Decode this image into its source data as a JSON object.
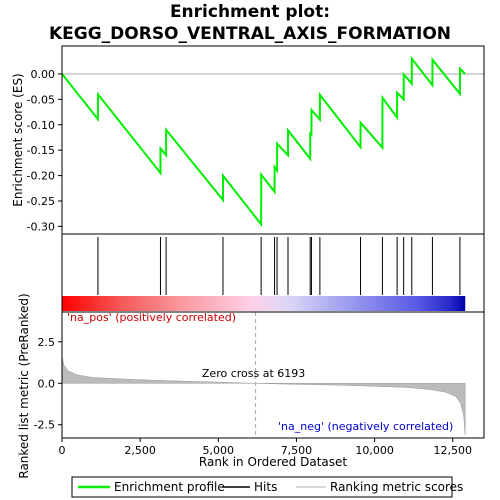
{
  "title_line1": "Enrichment plot:",
  "title_line2": "KEGG_DORSO_VENTRAL_AXIS_FORMATION",
  "chart_data": {
    "type": "line",
    "es_panel": {
      "ylabel": "Enrichment score (ES)",
      "ylim": [
        -0.315,
        0.055
      ],
      "yticks": [
        0.0,
        -0.05,
        -0.1,
        -0.15,
        -0.2,
        -0.25,
        -0.3
      ],
      "ytick_labels": [
        "0.00",
        "-0.05",
        "-0.10",
        "-0.15",
        "-0.20",
        "-0.25",
        "-0.30"
      ],
      "series_name": "Enrichment profile",
      "color": "#00ee00",
      "points": [
        [
          0,
          0.0
        ],
        [
          1150,
          -0.089
        ],
        [
          1151,
          -0.04
        ],
        [
          3150,
          -0.195
        ],
        [
          3151,
          -0.147
        ],
        [
          3330,
          -0.16
        ],
        [
          3331,
          -0.11
        ],
        [
          5150,
          -0.248
        ],
        [
          5151,
          -0.2
        ],
        [
          6370,
          -0.296
        ],
        [
          6371,
          -0.248
        ],
        [
          6372,
          -0.198
        ],
        [
          6800,
          -0.232
        ],
        [
          6801,
          -0.183
        ],
        [
          6880,
          -0.19
        ],
        [
          6881,
          -0.137
        ],
        [
          7230,
          -0.16
        ],
        [
          7231,
          -0.111
        ],
        [
          7940,
          -0.167
        ],
        [
          7941,
          -0.118
        ],
        [
          7980,
          -0.12
        ],
        [
          7981,
          -0.071
        ],
        [
          8250,
          -0.09
        ],
        [
          8251,
          -0.041
        ],
        [
          9550,
          -0.144
        ],
        [
          9551,
          -0.096
        ],
        [
          10250,
          -0.145
        ],
        [
          10251,
          -0.096
        ],
        [
          10252,
          -0.047
        ],
        [
          10720,
          -0.086
        ],
        [
          10721,
          -0.037
        ],
        [
          10930,
          -0.05
        ],
        [
          10931,
          -0.001
        ],
        [
          11190,
          -0.019
        ],
        [
          11191,
          0.03
        ],
        [
          11850,
          -0.022
        ],
        [
          11851,
          0.028
        ],
        [
          12730,
          -0.039
        ],
        [
          12731,
          0.01
        ],
        [
          12900,
          0.0
        ]
      ]
    },
    "hits_panel": {
      "series_name": "Hits",
      "hit_ranks": [
        1150,
        3150,
        3330,
        5150,
        6370,
        6800,
        6880,
        7230,
        7940,
        7980,
        8250,
        9550,
        10250,
        10720,
        10930,
        11190,
        11850,
        12730
      ]
    },
    "metric_panel": {
      "series_name": "Ranking metric scores",
      "xlabel": "Rank in Ordered Dataset",
      "ylabel": "Ranked list metric (PreRanked)",
      "xlim": [
        0,
        13500
      ],
      "ylim": [
        -3.3,
        4.3
      ],
      "xticks": [
        0,
        2500,
        5000,
        7500,
        10000,
        12500
      ],
      "xtick_labels": [
        "0",
        "2,500",
        "5,000",
        "7,500",
        "10,000",
        "12,500"
      ],
      "yticks": [
        2.5,
        0.0,
        -2.5
      ],
      "ytick_labels": [
        "2.5",
        "0.0",
        "-2.5"
      ],
      "zero_cross_rank": 6193,
      "zero_cross_label": "Zero cross at 6193",
      "pos_label": "'na_pos' (positively correlated)",
      "neg_label": "'na_neg' (negatively correlated)",
      "curve": [
        [
          0,
          1.65
        ],
        [
          60,
          1.1
        ],
        [
          200,
          0.75
        ],
        [
          500,
          0.5
        ],
        [
          1000,
          0.35
        ],
        [
          2000,
          0.25
        ],
        [
          3000,
          0.18
        ],
        [
          4000,
          0.12
        ],
        [
          5000,
          0.07
        ],
        [
          6193,
          0.0
        ],
        [
          7000,
          -0.04
        ],
        [
          8000,
          -0.08
        ],
        [
          9000,
          -0.12
        ],
        [
          10000,
          -0.18
        ],
        [
          11000,
          -0.25
        ],
        [
          11800,
          -0.38
        ],
        [
          12300,
          -0.55
        ],
        [
          12600,
          -0.8
        ],
        [
          12750,
          -1.2
        ],
        [
          12850,
          -2.0
        ],
        [
          12900,
          -3.15
        ]
      ]
    },
    "legend": {
      "placement": "bottom",
      "entries": [
        "Enrichment profile",
        "Hits",
        "Ranking metric scores"
      ]
    }
  }
}
